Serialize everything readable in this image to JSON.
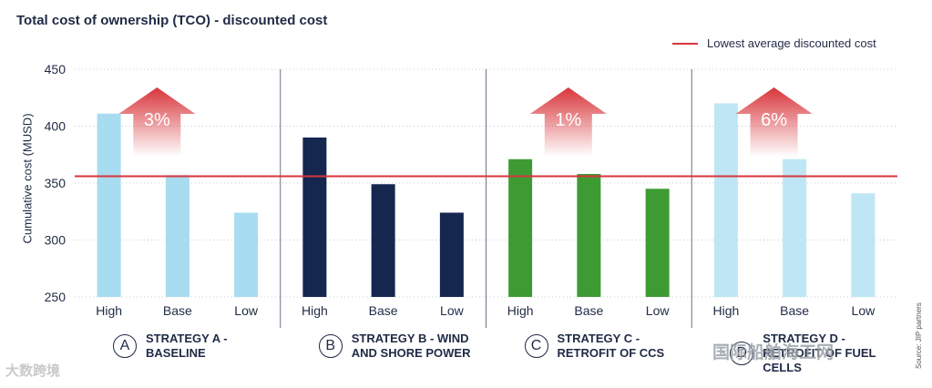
{
  "title": "Total cost of ownership (TCO) - discounted cost",
  "legend": {
    "label": "Lowest average discounted cost",
    "color": "#d8353b"
  },
  "source": "Source: JIP partners",
  "watermarks": {
    "left": "大数跨境",
    "right": "国际船舶海工网"
  },
  "chart_data": {
    "type": "bar",
    "ylabel": "Cumulative cost (MUSD)",
    "ylim": [
      250,
      450
    ],
    "yticks": [
      250,
      300,
      350,
      400,
      450
    ],
    "reference_line": {
      "label": "Lowest average discounted cost",
      "value": 356
    },
    "groups": [
      {
        "badge": "A",
        "label": "STRATEGY A - BASELINE",
        "color": "#a8dcf0",
        "categories": [
          "High",
          "Base",
          "Low"
        ],
        "values": [
          411,
          357,
          324
        ],
        "arrow": "3%"
      },
      {
        "badge": "B",
        "label": "STRATEGY B - WIND AND SHORE POWER",
        "color": "#15264f",
        "categories": [
          "High",
          "Base",
          "Low"
        ],
        "values": [
          390,
          349,
          324
        ],
        "arrow": ""
      },
      {
        "badge": "C",
        "label": "STRATEGY C - RETROFIT OF CCS",
        "color": "#3e9b34",
        "categories": [
          "High",
          "Base",
          "Low"
        ],
        "values": [
          371,
          358,
          345
        ],
        "arrow": "1%"
      },
      {
        "badge": "D",
        "label": "STRATEGY D - RETROFIT OF FUEL CELLS",
        "color": "#bfe6f5",
        "categories": [
          "High",
          "Base",
          "Low"
        ],
        "values": [
          420,
          371,
          341
        ],
        "arrow": "6%"
      }
    ]
  }
}
